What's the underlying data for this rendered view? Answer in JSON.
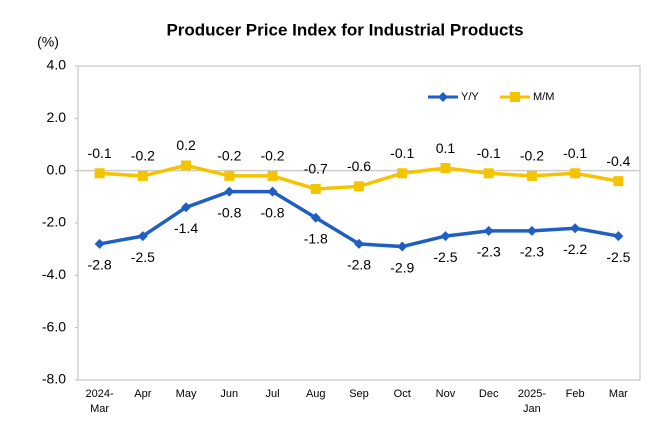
{
  "chart_data": {
    "type": "line",
    "title": "Producer Price Index for Industrial Products",
    "unit": "(%)",
    "categories": [
      "2024-Mar",
      "Apr",
      "May",
      "Jun",
      "Jul",
      "Aug",
      "Sep",
      "Oct",
      "Nov",
      "Dec",
      "2025-Jan",
      "Feb",
      "Mar"
    ],
    "series": [
      {
        "name": "Y/Y",
        "color": "#1f5fc4",
        "marker": "diamond",
        "label_position": "below",
        "values": [
          -2.8,
          -2.5,
          -1.4,
          -0.8,
          -0.8,
          -1.8,
          -2.8,
          -2.9,
          -2.5,
          -2.3,
          -2.3,
          -2.2,
          -2.5
        ]
      },
      {
        "name": "M/M",
        "color": "#f5c400",
        "marker": "square",
        "label_position": "above",
        "values": [
          -0.1,
          -0.2,
          0.2,
          -0.2,
          -0.2,
          -0.7,
          -0.6,
          -0.1,
          0.1,
          -0.1,
          -0.2,
          -0.1,
          -0.4
        ]
      }
    ],
    "ylim": [
      -8,
      4
    ],
    "yticks": [
      {
        "value": -8,
        "label": "-8.0"
      },
      {
        "value": -6,
        "label": "-6.0"
      },
      {
        "value": -4,
        "label": "-4.0"
      },
      {
        "value": -2,
        "label": "-2.0"
      },
      {
        "value": 0,
        "label": "0.0"
      },
      {
        "value": 2,
        "label": "2.0"
      },
      {
        "value": 4,
        "label": "4.0"
      }
    ],
    "legend": "top-right"
  }
}
